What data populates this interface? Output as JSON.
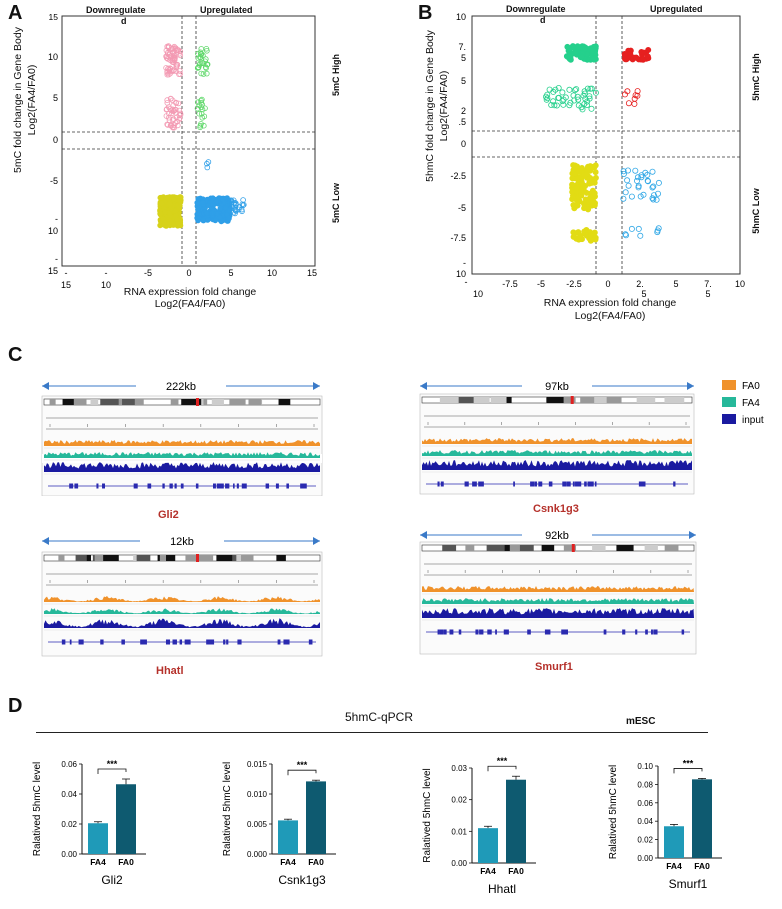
{
  "panels": {
    "A": {
      "letter": "A",
      "down_label": "Downregulate",
      "down_label_tail": "d",
      "up_label": "Upregulated",
      "high_label": "5mC High",
      "low_label": "5mC Low",
      "y_title_1": "5mC fold change  in Gene Body",
      "y_title_2": "Log2(FA4/FA0)",
      "x_title_1": "RNA expression fold change",
      "x_title_2": "Log2(FA4/FA0)",
      "y_ticks": [
        "15",
        "10",
        "5",
        "0",
        "-5",
        "-",
        "10",
        "-",
        "15"
      ],
      "x_ticks": [
        "-",
        "15",
        "-",
        "10",
        "-5",
        "0",
        "5",
        "10",
        "15"
      ]
    },
    "B": {
      "letter": "B",
      "down_label": "Downregulate",
      "down_label_tail": "d",
      "up_label": "Upregulated",
      "high_label": "5hmC High",
      "low_label": "5hmC Low",
      "y_title_1": "5hmC fold change  in Gene Body",
      "y_title_2": "Log2(FA4/FA0)",
      "x_title_1": "RNA expression fold change",
      "x_title_2": "Log2(FA4/FA0)",
      "y_ticks": [
        "10",
        "7.",
        "5",
        "5",
        "2",
        ".5",
        "0",
        "-2.5",
        "-5",
        "-7.5",
        "-",
        "10"
      ],
      "x_ticks": [
        "-",
        "10",
        "-7.5",
        "-5",
        "-2.5",
        "0",
        "2.",
        "5",
        "5",
        "7.",
        "5",
        "10"
      ]
    },
    "C": {
      "letter": "C",
      "tracks": [
        {
          "span": "222kb",
          "gene": "Gli2"
        },
        {
          "span": "97kb",
          "gene": "Csnk1g3"
        },
        {
          "span": "12kb",
          "gene": "Hhatl"
        },
        {
          "span": "92kb",
          "gene": "Smurf1"
        }
      ],
      "legend": [
        {
          "label": "FA0",
          "color": "#f0922b"
        },
        {
          "label": "FA4",
          "color": "#26b89a"
        },
        {
          "label": "input",
          "color": "#1a1aa0"
        }
      ]
    },
    "D": {
      "letter": "D",
      "title": "5hmC-qPCR",
      "subtitle": "mESC",
      "y_label": "Ralatived 5hmC level",
      "significance": "***",
      "bar_categories": [
        "FA4",
        "FA0"
      ],
      "colors": {
        "FA4": "#1f9ab8",
        "FA0": "#0e5a70"
      }
    }
  },
  "chart_data": [
    {
      "type": "bar",
      "title": "Gli2",
      "categories": [
        "FA4",
        "FA0"
      ],
      "values": [
        0.0205,
        0.0465
      ],
      "errors": [
        0.001,
        0.0035
      ],
      "ylim": [
        0,
        0.06
      ],
      "yticks": [
        "0.00",
        "0.02",
        "0.04",
        "0.06"
      ],
      "ylabel": "Ralatived 5hmC level"
    },
    {
      "type": "bar",
      "title": "Csnk1g3",
      "categories": [
        "FA4",
        "FA0"
      ],
      "values": [
        0.0056,
        0.0121
      ],
      "errors": [
        0.0002,
        0.0002
      ],
      "ylim": [
        0,
        0.015
      ],
      "yticks": [
        "0.000",
        "0.005",
        "0.010",
        "0.015"
      ],
      "ylabel": "Ralatived 5hmC level"
    },
    {
      "type": "bar",
      "title": "Hhatl",
      "categories": [
        "FA4",
        "FA0"
      ],
      "values": [
        0.011,
        0.0263
      ],
      "errors": [
        0.0006,
        0.0011
      ],
      "ylim": [
        0,
        0.03
      ],
      "yticks": [
        "0.00",
        "0.01",
        "0.02",
        "0.03"
      ],
      "ylabel": "Ralatived 5hmC level"
    },
    {
      "type": "bar",
      "title": "Smurf1",
      "categories": [
        "FA4",
        "FA0"
      ],
      "values": [
        0.0345,
        0.0855
      ],
      "errors": [
        0.002,
        0.001
      ],
      "ylim": [
        0,
        0.1
      ],
      "yticks": [
        "0.00",
        "0.02",
        "0.04",
        "0.06",
        "0.08",
        "0.10"
      ],
      "ylabel": "Ralatived 5hmC level"
    }
  ]
}
